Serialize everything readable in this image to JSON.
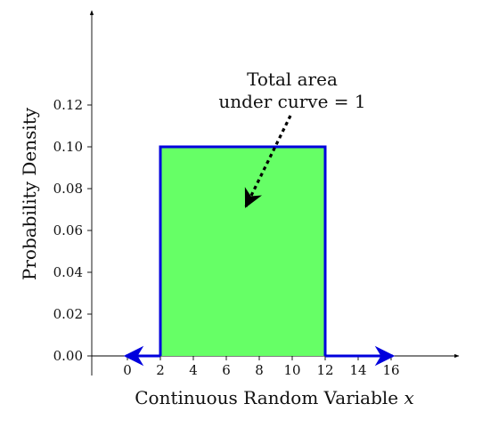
{
  "chart_data": {
    "type": "area",
    "title": "",
    "xlabel": "Continuous Random Variable",
    "xlabel_var": "x",
    "ylabel": "Probability Density",
    "x_ticks": [
      0,
      2,
      4,
      6,
      8,
      10,
      12,
      14,
      16
    ],
    "y_ticks": [
      "0.00",
      "0.02",
      "0.04",
      "0.06",
      "0.08",
      "0.10",
      "0.12"
    ],
    "xlim": [
      -2,
      20
    ],
    "ylim": [
      0,
      0.16
    ],
    "density": {
      "lower": 2,
      "upper": 12,
      "height": 0.1
    },
    "support_line": [
      {
        "from": 0,
        "to": 2,
        "y": 0
      },
      {
        "from": 12,
        "to": 16,
        "y": 0
      }
    ],
    "annotation": {
      "lines": [
        "Total area",
        "under curve = 1"
      ]
    },
    "colors": {
      "fill": "#66ff66",
      "outline": "#0000dd",
      "axis": "#000000"
    }
  }
}
